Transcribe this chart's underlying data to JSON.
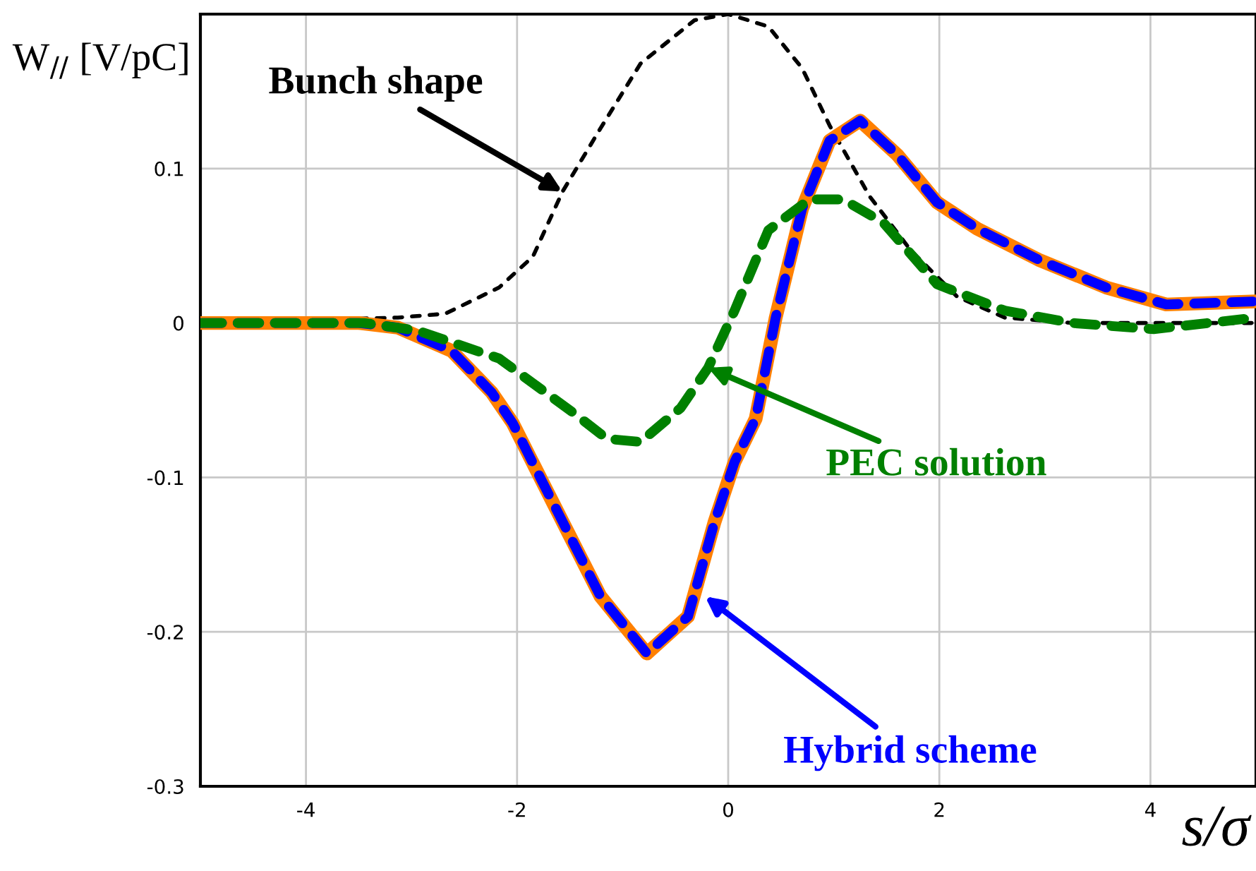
{
  "chart_data": {
    "type": "line",
    "ylabel": "W$_{//}$ [V/pC]",
    "xlabel": "s/σ",
    "xlim": [
      -5,
      5
    ],
    "ylim": [
      -0.3,
      0.2
    ],
    "xticks": [
      -4,
      -2,
      0,
      2,
      4
    ],
    "yticks": [
      -0.3,
      -0.2,
      -0.1,
      0,
      0.1
    ],
    "grid": true,
    "legend": false,
    "series": [
      {
        "color": "#000000",
        "line_style": "dotted",
        "x": [
          -5,
          -3.13,
          -2.68,
          -2.17,
          -1.85,
          -1.57,
          -1.21,
          -0.83,
          -0.32,
          0,
          0.38,
          0.7,
          0.96,
          1.34,
          1.73,
          2.17,
          2.62,
          3.26,
          5
        ],
        "values": [
          0,
          0.0035,
          0.006,
          0.023,
          0.043,
          0.085,
          0.126,
          0.168,
          0.196,
          0.2,
          0.192,
          0.165,
          0.128,
          0.082,
          0.047,
          0.017,
          0.0035,
          0,
          0
        ]
      },
      {
        "color": "#ff8000",
        "line_style": "solid",
        "x": [
          -5,
          -3.5,
          -3.13,
          -2.62,
          -2.24,
          -2.04,
          -1.73,
          -1.21,
          -0.77,
          -0.38,
          -0.13,
          0.06,
          0.26,
          0.45,
          0.7,
          0.96,
          1.25,
          1.6,
          1.98,
          2.36,
          2.94,
          3.58,
          4.15,
          5
        ],
        "values": [
          0,
          0,
          -0.003,
          -0.018,
          -0.045,
          -0.065,
          -0.107,
          -0.177,
          -0.214,
          -0.19,
          -0.129,
          -0.09,
          -0.062,
          0.0035,
          0.074,
          0.118,
          0.131,
          0.109,
          0.078,
          0.061,
          0.041,
          0.023,
          0.012,
          0.014
        ]
      },
      {
        "color": "#0000ff",
        "line_style": "dashed",
        "x": [
          -5,
          -3.5,
          -3.13,
          -2.62,
          -2.24,
          -2.04,
          -1.73,
          -1.21,
          -0.77,
          -0.38,
          -0.13,
          0.06,
          0.26,
          0.45,
          0.7,
          0.96,
          1.25,
          1.6,
          1.98,
          2.36,
          2.94,
          3.58,
          4.15,
          5
        ],
        "values": [
          0,
          0,
          -0.003,
          -0.018,
          -0.045,
          -0.065,
          -0.107,
          -0.177,
          -0.214,
          -0.19,
          -0.129,
          -0.09,
          -0.062,
          0.0035,
          0.074,
          0.118,
          0.131,
          0.109,
          0.078,
          0.061,
          0.041,
          0.023,
          0.012,
          0.014
        ]
      },
      {
        "color": "#008000",
        "line_style": "dashed",
        "x": [
          -5,
          -3.45,
          -2.94,
          -2.17,
          -1.47,
          -1.15,
          -0.83,
          -0.45,
          -0.19,
          0.06,
          0.38,
          0.77,
          1.09,
          1.47,
          1.98,
          2.62,
          3.26,
          4.03,
          5
        ],
        "values": [
          0,
          0,
          -0.005,
          -0.023,
          -0.058,
          -0.075,
          -0.077,
          -0.055,
          -0.029,
          0.008,
          0.06,
          0.08,
          0.08,
          0.065,
          0.025,
          0.008,
          0,
          -0.004,
          0.0035
        ]
      }
    ],
    "annotations": [
      {
        "text": "Bunch shape",
        "x": -1.57,
        "y": 0.085
      },
      {
        "text": "PEC solution",
        "x": -0.19,
        "y": -0.029
      },
      {
        "text": "Hybrid scheme",
        "x": -0.22,
        "y": -0.177
      }
    ]
  }
}
